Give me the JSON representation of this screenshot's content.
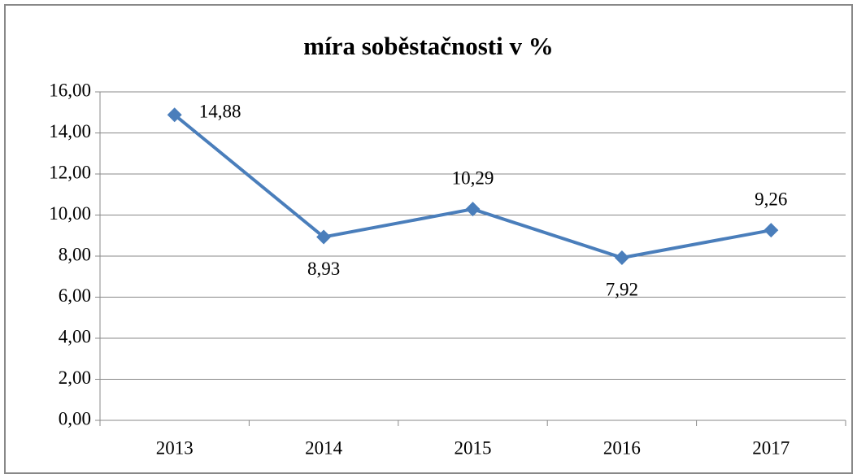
{
  "chart_data": {
    "type": "line",
    "title": "míra soběstačnosti v %",
    "categories": [
      "2013",
      "2014",
      "2015",
      "2016",
      "2017"
    ],
    "values": [
      14.88,
      8.93,
      10.29,
      7.92,
      9.26
    ],
    "value_labels": [
      "14,88",
      "8,93",
      "10,29",
      "7,92",
      "9,26"
    ],
    "color": "#4a7ebb",
    "ylim": [
      0,
      16
    ],
    "yticks": [
      {
        "value": 0,
        "label": "0,00"
      },
      {
        "value": 2,
        "label": "2,00"
      },
      {
        "value": 4,
        "label": "4,00"
      },
      {
        "value": 6,
        "label": "6,00"
      },
      {
        "value": 8,
        "label": "8,00"
      },
      {
        "value": 10,
        "label": "10,00"
      },
      {
        "value": 12,
        "label": "12,00"
      },
      {
        "value": 14,
        "label": "14,00"
      },
      {
        "value": 16,
        "label": "16,00"
      }
    ],
    "grid": true
  }
}
